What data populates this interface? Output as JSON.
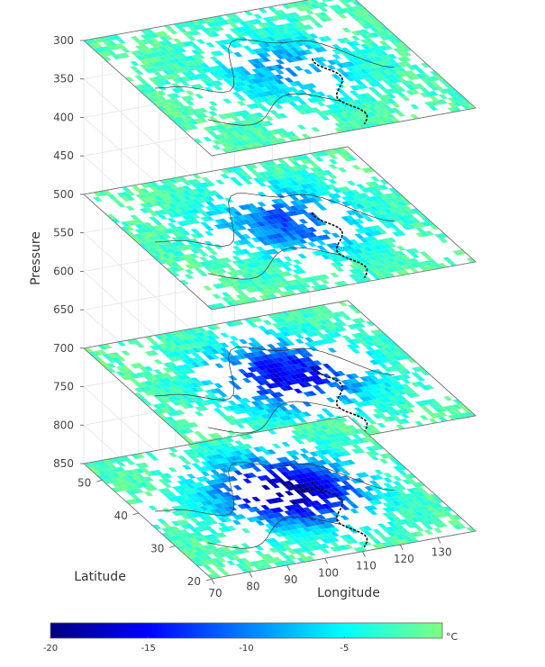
{
  "chart_data": {
    "type": "3d-stacked-map-slices",
    "zlabel": "Pressure",
    "ylabel": "Latitude",
    "xlabel": "Longitude",
    "pressure_ticks": [
      "300",
      "350",
      "400",
      "450",
      "500",
      "550",
      "600",
      "650",
      "700",
      "750",
      "800",
      "850"
    ],
    "latitude_ticks": [
      "20",
      "30",
      "40",
      "50"
    ],
    "longitude_ticks": [
      "70",
      "80",
      "90",
      "100",
      "110",
      "120",
      "130"
    ],
    "zlim": [
      300,
      850
    ],
    "ylim": [
      20,
      55
    ],
    "xlim": [
      70,
      140
    ],
    "slices": [
      {
        "pressure": 300
      },
      {
        "pressure": 500
      },
      {
        "pressure": 700
      },
      {
        "pressure": 850
      }
    ],
    "colorbar": {
      "min": -20,
      "max": 0,
      "ticks": [
        "-20",
        "-15",
        "-10",
        "-5"
      ],
      "unit": "°C",
      "colors": [
        "#00007f",
        "#0000ff",
        "#0080ff",
        "#00ffff",
        "#80ff80"
      ]
    }
  }
}
